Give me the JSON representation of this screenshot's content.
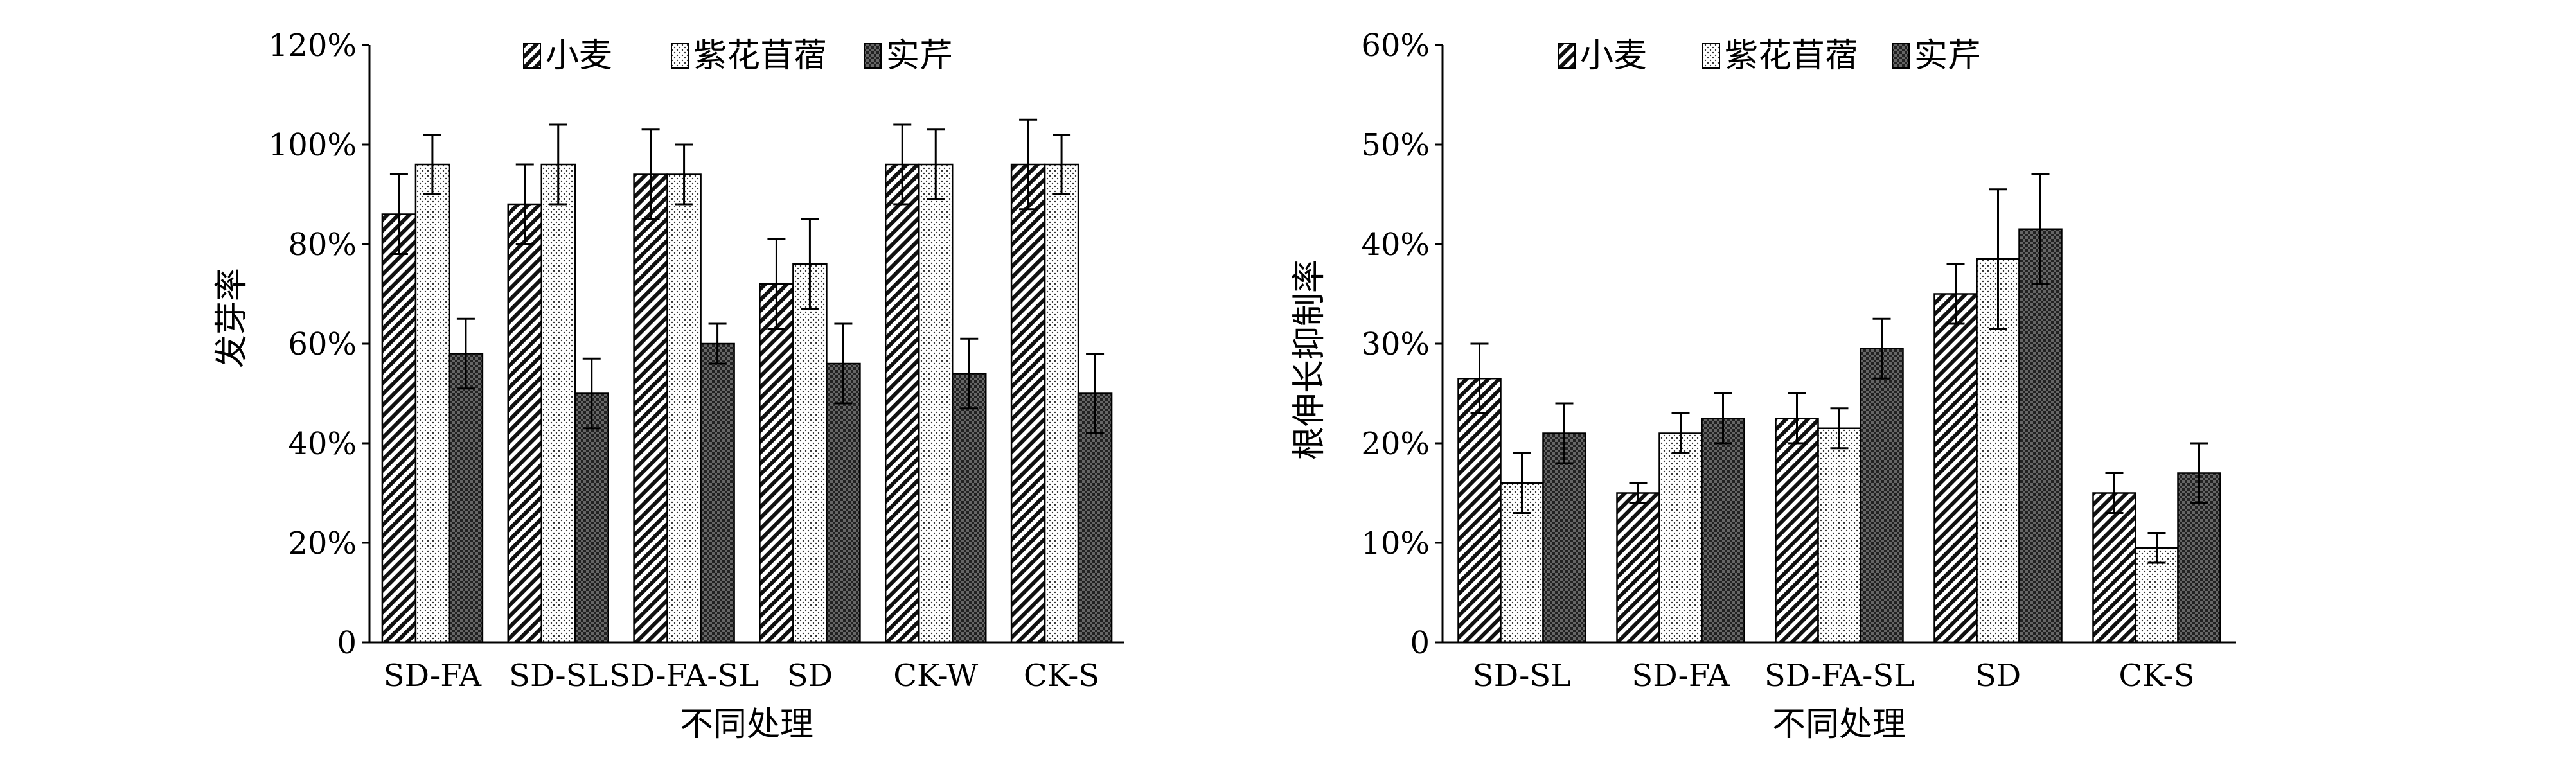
{
  "chart_data": [
    {
      "type": "bar",
      "title": "",
      "xlabel": "不同处理",
      "ylabel": "发芽率",
      "ylim": [
        0,
        120
      ],
      "yticks": [
        "0",
        "20%",
        "40%",
        "60%",
        "80%",
        "100%",
        "120%"
      ],
      "categories": [
        "SD-FA",
        "SD-SL",
        "SD-FA-SL",
        "SD",
        "CK-W",
        "CK-S"
      ],
      "series": [
        {
          "name": "小麦",
          "values": [
            86,
            88,
            94,
            72,
            96,
            96
          ],
          "errors": [
            8,
            8,
            9,
            9,
            8,
            9
          ]
        },
        {
          "name": "紫花苜蓿",
          "values": [
            96,
            96,
            94,
            76,
            96,
            96
          ],
          "errors": [
            6,
            8,
            6,
            9,
            7,
            6
          ]
        },
        {
          "name": "实芹",
          "values": [
            58,
            50,
            60,
            56,
            54,
            50
          ],
          "errors": [
            7,
            7,
            4,
            8,
            7,
            8
          ]
        }
      ],
      "legend": "top-center"
    },
    {
      "type": "bar",
      "title": "",
      "xlabel": "不同处理",
      "ylabel": "根伸长抑制率",
      "ylim": [
        0,
        60
      ],
      "yticks": [
        "0",
        "10%",
        "20%",
        "30%",
        "40%",
        "50%",
        "60%"
      ],
      "categories": [
        "SD-SL",
        "SD-FA",
        "SD-FA-SL",
        "SD",
        "CK-S"
      ],
      "series": [
        {
          "name": "小麦",
          "values": [
            26.5,
            15,
            22.5,
            35,
            15
          ],
          "errors": [
            3.5,
            1,
            2.5,
            3,
            2
          ]
        },
        {
          "name": "紫花苜蓿",
          "values": [
            16,
            21,
            21.5,
            38.5,
            9.5
          ],
          "errors": [
            3,
            2,
            2,
            7,
            1.5
          ]
        },
        {
          "name": "实芹",
          "values": [
            21,
            22.5,
            29.5,
            41.5,
            17
          ],
          "errors": [
            3,
            2.5,
            3,
            5.5,
            3
          ]
        }
      ],
      "legend": "top-center"
    }
  ],
  "colors": {
    "axis": "#000000",
    "background": "#ffffff"
  }
}
